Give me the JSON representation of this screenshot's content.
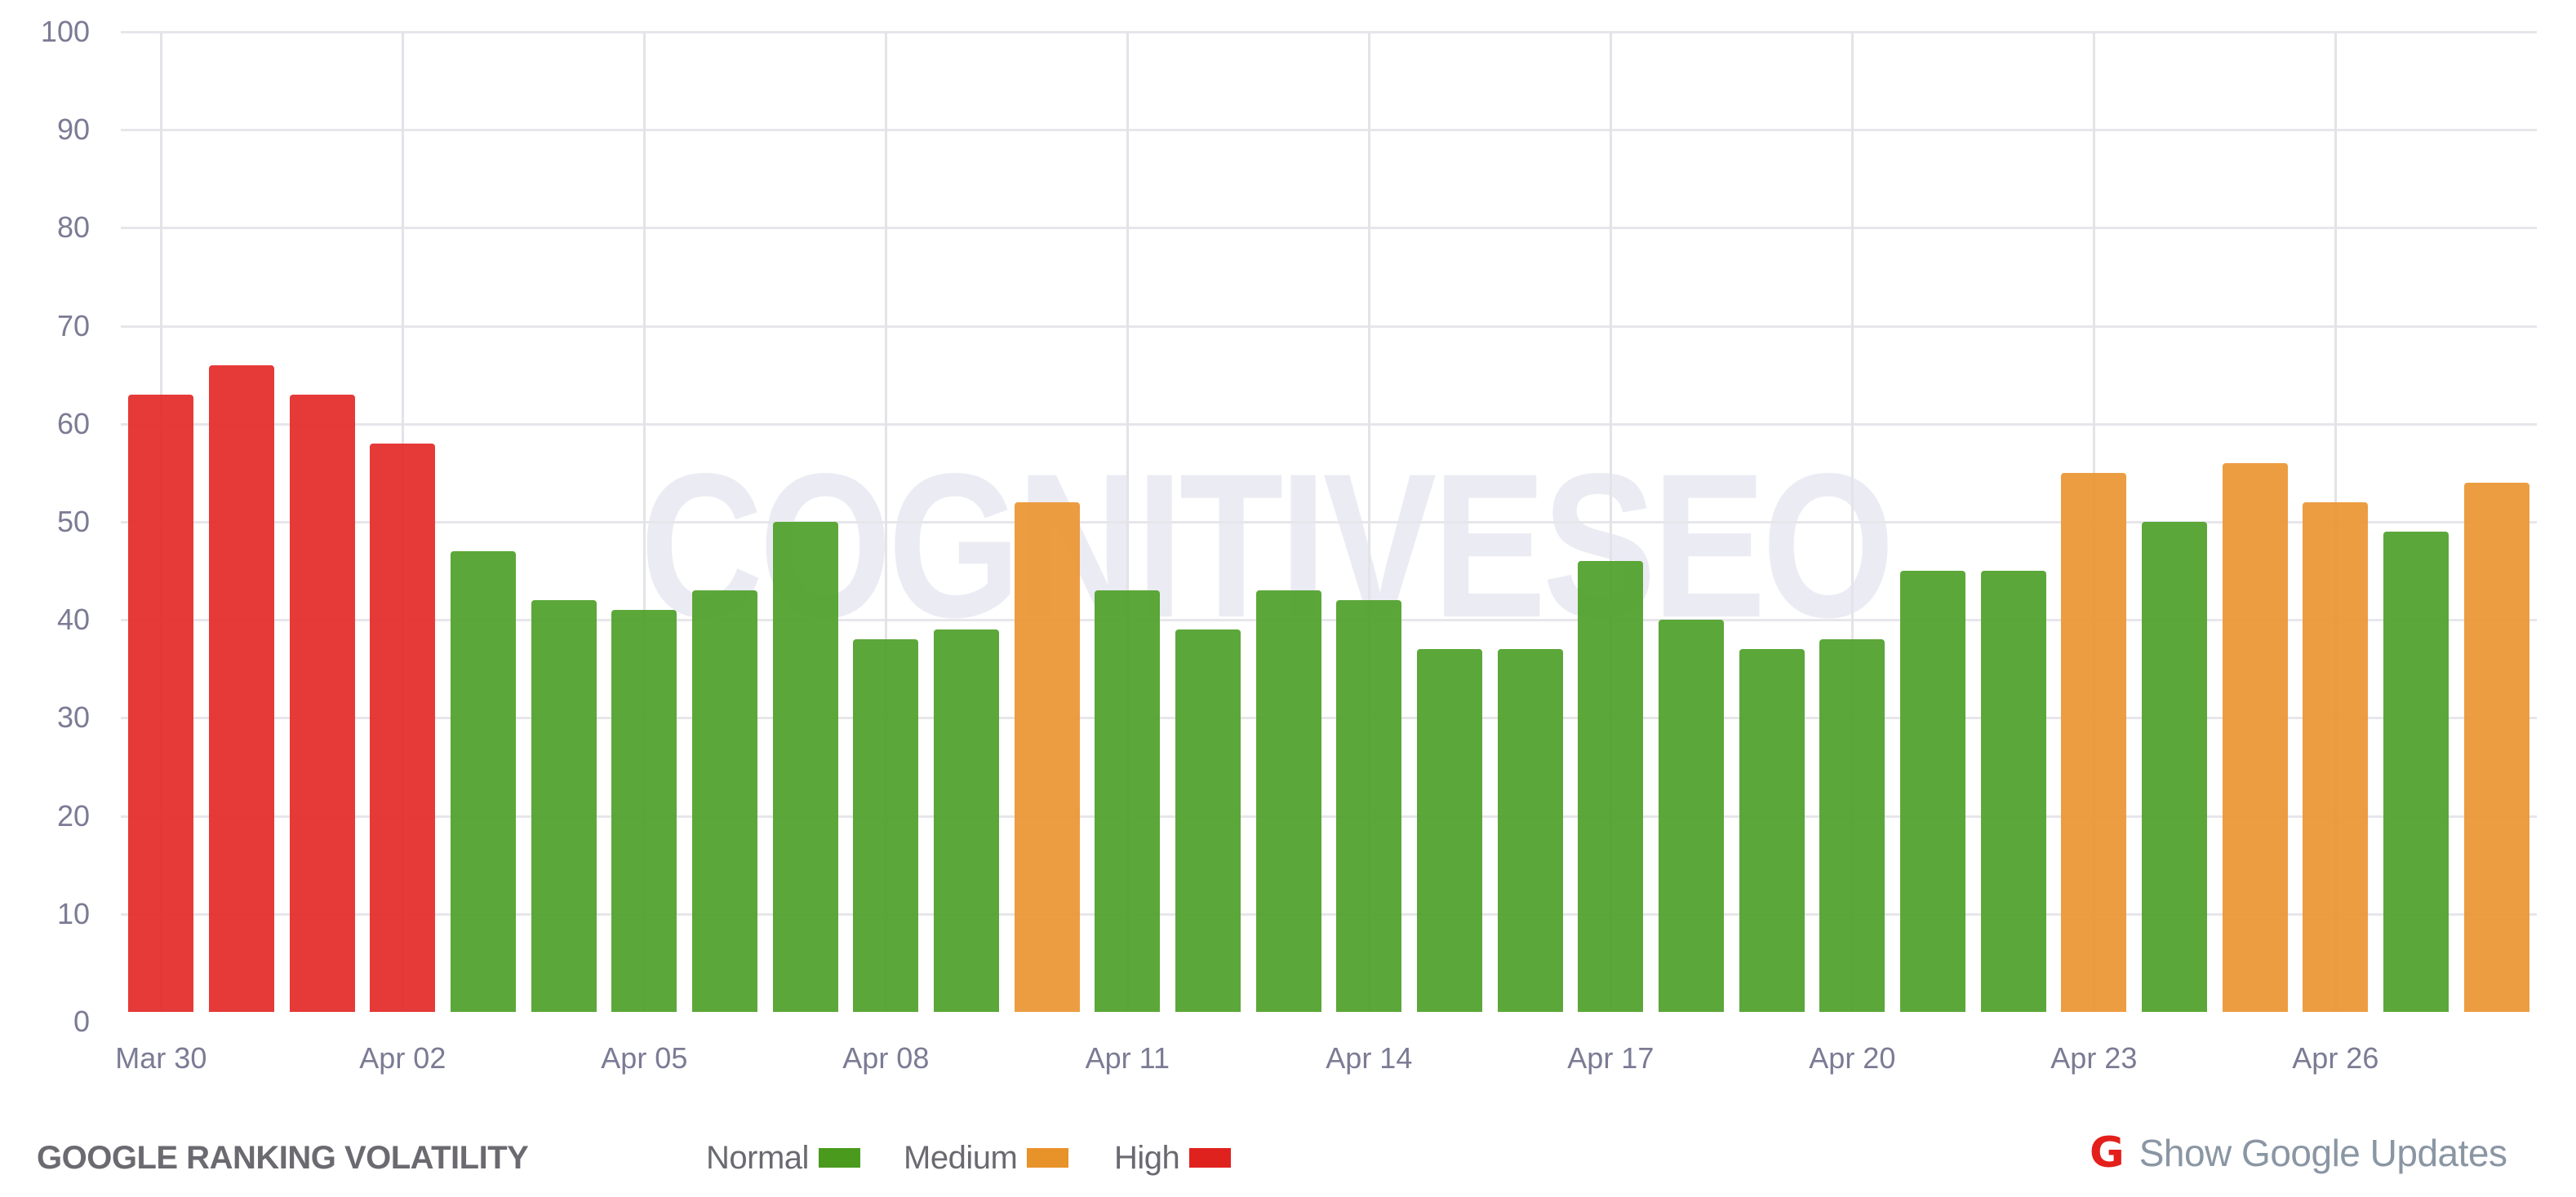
{
  "chart_data": {
    "type": "bar",
    "title": "GOOGLE RANKING VOLATILITY",
    "xlabel": "",
    "ylabel": "",
    "ylim": [
      0,
      100
    ],
    "yticks": [
      0,
      10,
      20,
      30,
      40,
      50,
      60,
      70,
      80,
      90,
      100
    ],
    "grid": true,
    "legend_position": "bottom",
    "categories": [
      "Mar 30",
      "Mar 31",
      "Apr 01",
      "Apr 02",
      "Apr 03",
      "Apr 04",
      "Apr 05",
      "Apr 06",
      "Apr 07",
      "Apr 08",
      "Apr 09",
      "Apr 10",
      "Apr 11",
      "Apr 12",
      "Apr 13",
      "Apr 14",
      "Apr 15",
      "Apr 16",
      "Apr 17",
      "Apr 18",
      "Apr 19",
      "Apr 20",
      "Apr 21",
      "Apr 22",
      "Apr 23",
      "Apr 24",
      "Apr 25",
      "Apr 26",
      "Apr 27",
      "Apr 28"
    ],
    "xtick_labels": [
      "Mar 30",
      "Apr 02",
      "Apr 05",
      "Apr 08",
      "Apr 11",
      "Apr 14",
      "Apr 17",
      "Apr 20",
      "Apr 23",
      "Apr 26"
    ],
    "xtick_indices": [
      0,
      3,
      6,
      9,
      12,
      15,
      18,
      21,
      24,
      27
    ],
    "values": [
      63,
      66,
      63,
      58,
      47,
      42,
      41,
      43,
      50,
      38,
      39,
      52,
      43,
      39,
      43,
      42,
      37,
      37,
      46,
      40,
      37,
      38,
      45,
      45,
      55,
      50,
      56,
      52,
      49,
      54
    ],
    "levels": [
      "high",
      "high",
      "high",
      "high",
      "normal",
      "normal",
      "normal",
      "normal",
      "normal",
      "normal",
      "normal",
      "medium",
      "normal",
      "normal",
      "normal",
      "normal",
      "normal",
      "normal",
      "normal",
      "normal",
      "normal",
      "normal",
      "normal",
      "normal",
      "medium",
      "normal",
      "medium",
      "medium",
      "normal",
      "medium"
    ],
    "legend": [
      {
        "key": "normal",
        "label": "Normal",
        "color": "#4a9a1e"
      },
      {
        "key": "medium",
        "label": "Medium",
        "color": "#e8922a"
      },
      {
        "key": "high",
        "label": "High",
        "color": "#e0221f"
      }
    ],
    "bar_colors": {
      "normal": "#50a02a",
      "medium": "#eb9633",
      "high": "#e32b29"
    },
    "watermark": "COGNITIVESEO"
  },
  "footer": {
    "title": "GOOGLE RANKING VOLATILITY",
    "google_updates_icon": "google-g-icon",
    "google_updates_icon_glyph": "G",
    "google_updates_label": "Show Google Updates"
  }
}
